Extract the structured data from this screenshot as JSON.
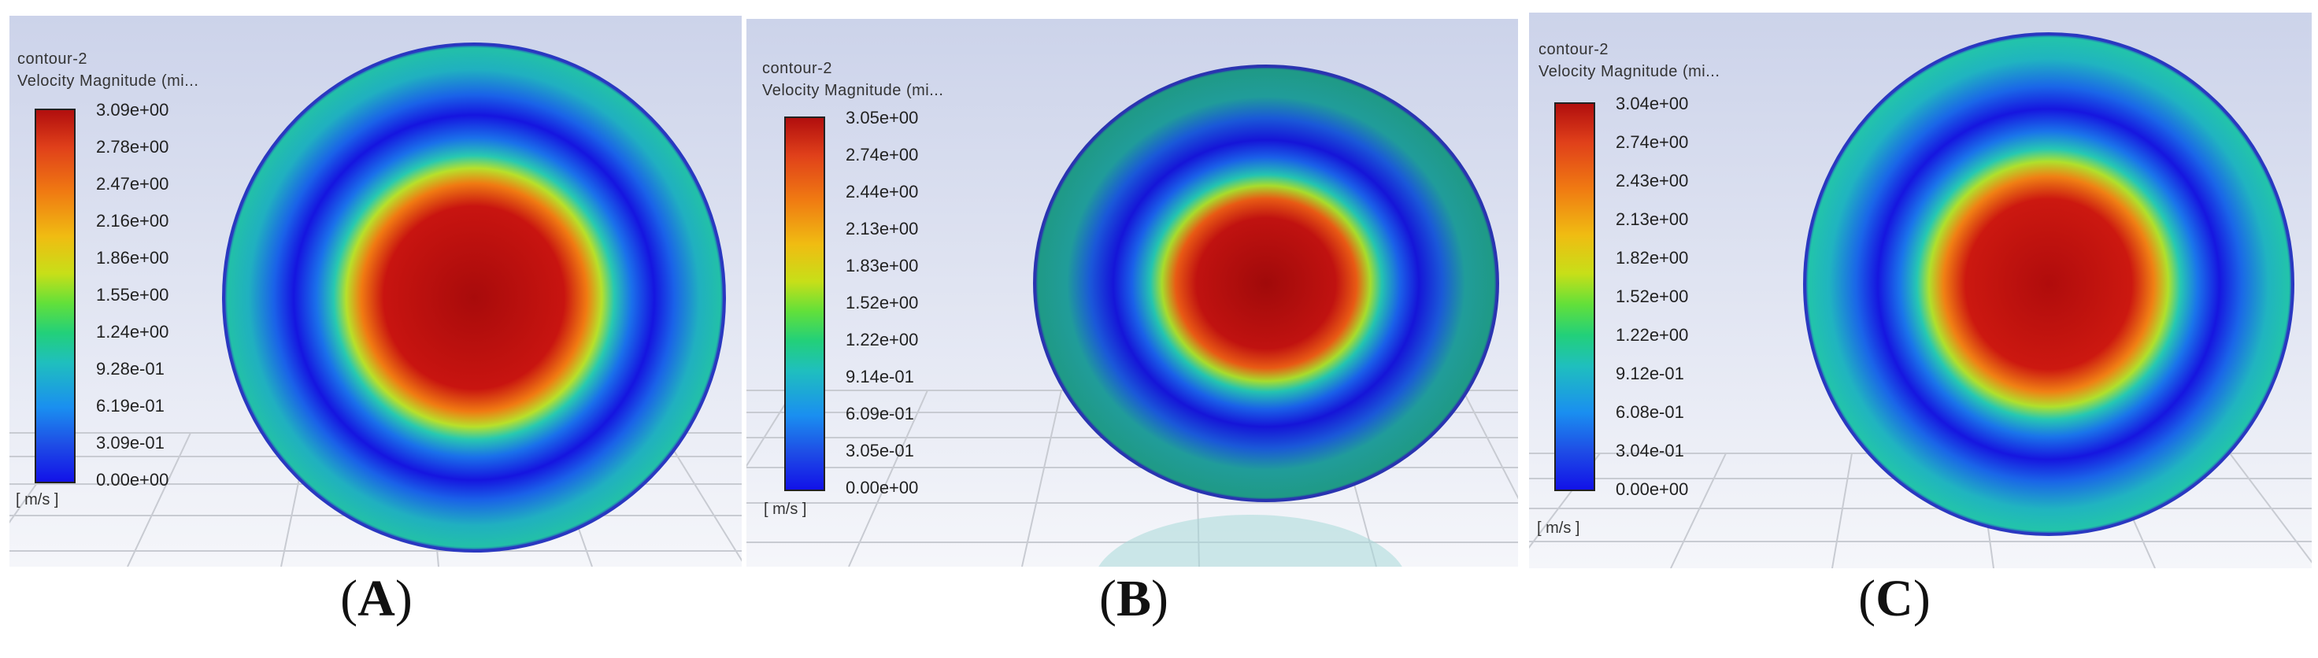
{
  "panels": [
    {
      "caption_open": "(",
      "caption_letter": "A",
      "caption_close": ")",
      "contour_name": "contour-2",
      "field_name": "Velocity Magnitude (mi...",
      "units": "[ m/s ]",
      "ticks": [
        "3.09e+00",
        "2.78e+00",
        "2.47e+00",
        "2.16e+00",
        "1.86e+00",
        "1.55e+00",
        "1.24e+00",
        "9.28e-01",
        "6.19e-01",
        "3.09e-01",
        "0.00e+00"
      ]
    },
    {
      "caption_open": "(",
      "caption_letter": "B",
      "caption_close": ")",
      "contour_name": "contour-2",
      "field_name": "Velocity Magnitude (mi...",
      "units": "[ m/s ]",
      "ticks": [
        "3.05e+00",
        "2.74e+00",
        "2.44e+00",
        "2.13e+00",
        "1.83e+00",
        "1.52e+00",
        "1.22e+00",
        "9.14e-01",
        "6.09e-01",
        "3.05e-01",
        "0.00e+00"
      ]
    },
    {
      "caption_open": "(",
      "caption_letter": "C",
      "caption_close": ")",
      "contour_name": "contour-2",
      "field_name": "Velocity Magnitude (mi...",
      "units": "[ m/s ]",
      "ticks": [
        "3.04e+00",
        "2.74e+00",
        "2.43e+00",
        "2.13e+00",
        "1.82e+00",
        "1.52e+00",
        "1.22e+00",
        "9.12e-01",
        "6.08e-01",
        "3.04e-01",
        "0.00e+00"
      ]
    }
  ],
  "colors": {
    "core": "#a80b0b",
    "low": "#1515e0",
    "wall": "#20b9a0",
    "background_top": "#ccd3ea",
    "background_bottom": "#f5f6fa",
    "grid": "#c8cbd2"
  }
}
